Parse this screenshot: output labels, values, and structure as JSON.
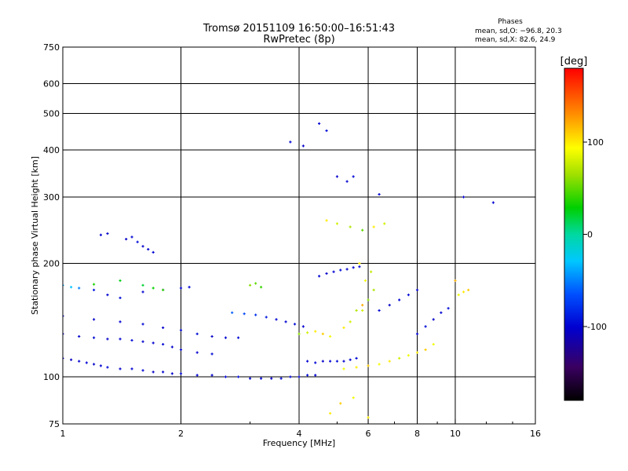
{
  "chart_data": {
    "type": "scatter",
    "title": "Tromsø 20151109 16:50:00–16:51:43",
    "subtitle": "RwPretec (8p)",
    "phase_header": "Phases",
    "phase_stats": [
      "mean, sd,O: −96.8, 20.3",
      "mean, sd,X:  82.6, 24.9"
    ],
    "xlabel": "Frequency [MHz]",
    "ylabel": "Stationary phase Virtual Height [km]",
    "xscale": "log",
    "yscale": "log",
    "xlim": [
      1,
      16
    ],
    "ylim": [
      75,
      750
    ],
    "xticks": [
      1,
      2,
      4,
      6,
      8,
      10,
      16
    ],
    "xtick_labels": [
      "1",
      "2",
      "4",
      "6",
      "8",
      "10",
      "16"
    ],
    "xgrid": [
      2,
      4,
      6,
      8,
      10
    ],
    "yticks": [
      75,
      100,
      200,
      300,
      400,
      500,
      600,
      750
    ],
    "ytick_labels": [
      "75",
      "100",
      "200",
      "300",
      "400",
      "500",
      "600",
      "750"
    ],
    "ygrid": [
      100,
      200,
      300,
      400,
      500,
      600
    ],
    "grid": true,
    "colorbar": {
      "label": "[deg]",
      "range": [
        -180,
        180
      ],
      "ticks": [
        100,
        0,
        -100
      ],
      "tick_labels": [
        "100",
        "0",
        "-100"
      ]
    },
    "series": [
      {
        "values": [
          [
            1.0,
            112,
            -100
          ],
          [
            1.05,
            111,
            -105
          ],
          [
            1.1,
            110,
            -102
          ],
          [
            1.15,
            109,
            -98
          ],
          [
            1.2,
            108,
            -104
          ],
          [
            1.25,
            107,
            -100
          ],
          [
            1.3,
            106,
            -96
          ],
          [
            1.4,
            105,
            -102
          ],
          [
            1.5,
            105,
            -100
          ],
          [
            1.6,
            104,
            -98
          ],
          [
            1.7,
            103,
            -104
          ],
          [
            1.8,
            103,
            -100
          ],
          [
            1.9,
            102,
            -102
          ],
          [
            2.0,
            102,
            -98
          ],
          [
            2.2,
            101,
            -100
          ],
          [
            2.4,
            101,
            -104
          ],
          [
            2.6,
            100,
            -100
          ],
          [
            2.8,
            100,
            -96
          ],
          [
            3.0,
            99,
            -102
          ],
          [
            3.2,
            99,
            -100
          ],
          [
            3.4,
            99,
            -104
          ],
          [
            3.6,
            99,
            -98
          ],
          [
            3.8,
            100,
            -100
          ],
          [
            4.0,
            100,
            -102
          ],
          [
            4.2,
            101,
            -96
          ],
          [
            4.4,
            101,
            -100
          ]
        ]
      },
      {
        "values": [
          [
            1.0,
            130,
            -100
          ],
          [
            1.1,
            128,
            -102
          ],
          [
            1.2,
            127,
            -98
          ],
          [
            1.3,
            126,
            -104
          ],
          [
            1.4,
            126,
            -100
          ],
          [
            1.5,
            125,
            -96
          ],
          [
            1.6,
            124,
            -102
          ],
          [
            1.7,
            123,
            -100
          ],
          [
            1.8,
            122,
            -98
          ],
          [
            1.9,
            120,
            -104
          ],
          [
            2.0,
            118,
            -100
          ],
          [
            2.2,
            116,
            -102
          ],
          [
            2.4,
            115,
            -98
          ]
        ]
      },
      {
        "values": [
          [
            1.0,
            145,
            -100
          ],
          [
            1.2,
            142,
            -104
          ],
          [
            1.4,
            140,
            -100
          ],
          [
            1.6,
            138,
            -98
          ],
          [
            1.8,
            135,
            -102
          ],
          [
            2.0,
            133,
            -100
          ],
          [
            2.2,
            130,
            -96
          ],
          [
            2.4,
            128,
            -104
          ],
          [
            2.6,
            127,
            -100
          ],
          [
            2.8,
            127,
            -98
          ]
        ]
      },
      {
        "values": [
          [
            1.0,
            175,
            -40
          ],
          [
            1.05,
            173,
            -30
          ],
          [
            1.1,
            172,
            -50
          ],
          [
            1.2,
            170,
            -90
          ],
          [
            1.3,
            165,
            -100
          ],
          [
            1.4,
            162,
            -96
          ],
          [
            1.6,
            168,
            -100
          ],
          [
            1.8,
            170,
            -102
          ],
          [
            2.0,
            172,
            -100
          ],
          [
            2.1,
            173,
            -98
          ]
        ]
      },
      {
        "values": [
          [
            1.6,
            175,
            20
          ],
          [
            1.7,
            172,
            30
          ],
          [
            1.8,
            170,
            40
          ],
          [
            1.4,
            180,
            25
          ],
          [
            1.2,
            176,
            35
          ],
          [
            3.0,
            175,
            60
          ],
          [
            3.1,
            177,
            50
          ],
          [
            3.2,
            173,
            40
          ]
        ]
      },
      {
        "values": [
          [
            1.3,
            240,
            -104
          ],
          [
            1.5,
            235,
            -100
          ],
          [
            1.55,
            228,
            -96
          ],
          [
            1.6,
            222,
            -102
          ],
          [
            1.65,
            218,
            -100
          ],
          [
            1.7,
            214,
            -98
          ],
          [
            1.25,
            238,
            -100
          ],
          [
            1.45,
            232,
            -104
          ]
        ]
      },
      {
        "values": [
          [
            2.7,
            148,
            -60
          ],
          [
            2.9,
            147,
            -70
          ],
          [
            3.1,
            146,
            -80
          ],
          [
            3.3,
            144,
            -90
          ],
          [
            3.5,
            142,
            -100
          ],
          [
            3.7,
            140,
            -100
          ],
          [
            3.9,
            138,
            -96
          ],
          [
            4.1,
            136,
            -102
          ]
        ]
      },
      {
        "values": [
          [
            4.2,
            110,
            -100
          ],
          [
            4.4,
            109,
            -98
          ],
          [
            4.6,
            110,
            -104
          ],
          [
            4.8,
            110,
            -100
          ],
          [
            5.0,
            110,
            -96
          ],
          [
            5.2,
            110,
            -102
          ],
          [
            5.4,
            111,
            -100
          ],
          [
            5.6,
            112,
            -98
          ]
        ]
      },
      {
        "values": [
          [
            4.0,
            130,
            60
          ],
          [
            4.2,
            131,
            80
          ],
          [
            4.4,
            132,
            100
          ],
          [
            4.6,
            130,
            110
          ],
          [
            4.8,
            128,
            90
          ],
          [
            5.2,
            135,
            100
          ],
          [
            5.4,
            140,
            80
          ],
          [
            5.6,
            150,
            70
          ],
          [
            5.8,
            155,
            120
          ]
        ]
      },
      {
        "values": [
          [
            4.5,
            185,
            -100
          ],
          [
            4.7,
            188,
            -104
          ],
          [
            4.9,
            190,
            -100
          ],
          [
            5.1,
            192,
            -96
          ],
          [
            5.3,
            193,
            -102
          ],
          [
            5.5,
            195,
            -100
          ],
          [
            5.7,
            196,
            -98
          ]
        ]
      },
      {
        "values": [
          [
            5.8,
            150,
            80
          ],
          [
            6.0,
            160,
            60
          ],
          [
            6.2,
            170,
            70
          ],
          [
            5.9,
            180,
            90
          ],
          [
            6.1,
            190,
            75
          ],
          [
            5.7,
            200,
            100
          ]
        ]
      },
      {
        "values": [
          [
            5.2,
            105,
            90
          ],
          [
            5.6,
            106,
            100
          ],
          [
            6.0,
            107,
            110
          ],
          [
            6.4,
            108,
            90
          ],
          [
            6.8,
            110,
            100
          ],
          [
            7.2,
            112,
            80
          ],
          [
            7.6,
            114,
            90
          ],
          [
            8.0,
            116,
            100
          ],
          [
            8.4,
            118,
            110
          ],
          [
            8.8,
            122,
            90
          ]
        ]
      },
      {
        "values": [
          [
            6.4,
            150,
            -100
          ],
          [
            6.8,
            155,
            -104
          ],
          [
            7.2,
            160,
            -100
          ],
          [
            7.6,
            165,
            -96
          ],
          [
            8.0,
            170,
            -102
          ]
        ]
      },
      {
        "values": [
          [
            8.0,
            130,
            -100
          ],
          [
            8.4,
            136,
            -98
          ],
          [
            8.8,
            142,
            -104
          ],
          [
            9.2,
            148,
            -100
          ],
          [
            9.6,
            152,
            -96
          ]
        ]
      },
      {
        "values": [
          [
            4.7,
            260,
            100
          ],
          [
            5.0,
            255,
            80
          ],
          [
            5.4,
            250,
            70
          ],
          [
            5.8,
            245,
            50
          ],
          [
            6.2,
            250,
            100
          ],
          [
            6.6,
            255,
            80
          ]
        ]
      },
      {
        "values": [
          [
            3.8,
            420,
            -100
          ],
          [
            4.1,
            410,
            -104
          ],
          [
            4.5,
            470,
            -100
          ],
          [
            4.7,
            450,
            -96
          ],
          [
            5.0,
            340,
            -102
          ],
          [
            5.3,
            330,
            -100
          ],
          [
            5.5,
            340,
            -98
          ],
          [
            6.4,
            305,
            -100
          ],
          [
            10.5,
            300,
            -102
          ],
          [
            12.5,
            290,
            -100
          ]
        ]
      },
      {
        "values": [
          [
            10.2,
            165,
            90
          ],
          [
            10.5,
            168,
            100
          ],
          [
            10.8,
            170,
            110
          ],
          [
            10.0,
            180,
            120
          ]
        ]
      },
      {
        "values": [
          [
            4.8,
            80,
            100
          ],
          [
            5.1,
            85,
            110
          ],
          [
            5.5,
            88,
            90
          ],
          [
            6.0,
            78,
            100
          ]
        ]
      }
    ]
  }
}
